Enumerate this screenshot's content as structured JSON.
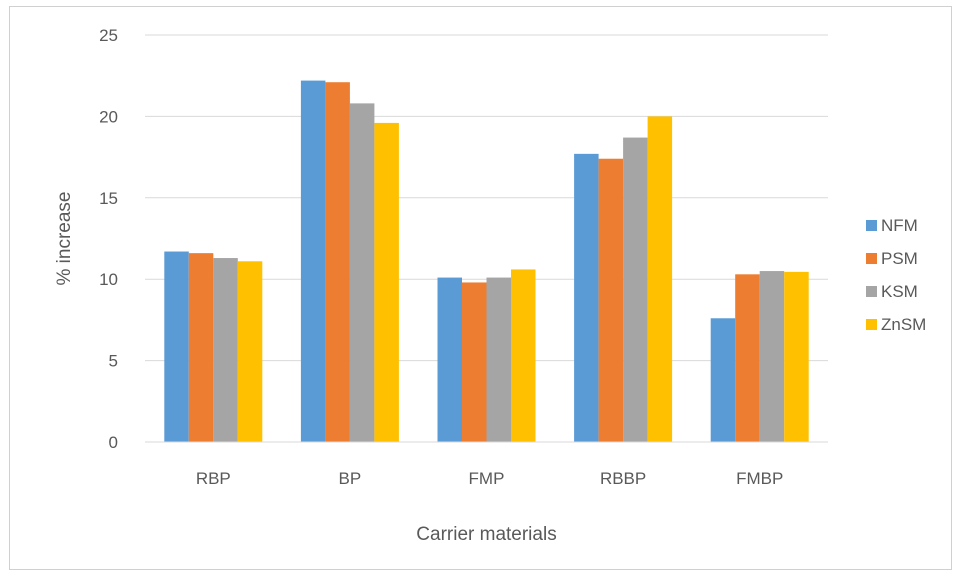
{
  "chart_data": {
    "type": "bar",
    "title": "",
    "xlabel": "Carrier materials",
    "ylabel": "% increase",
    "ylim": [
      0,
      25
    ],
    "yticks": [
      0,
      5,
      10,
      15,
      20,
      25
    ],
    "grid": true,
    "legend_position": "right",
    "categories": [
      "RBP",
      "BP",
      "FMP",
      "RBBP",
      "FMBP"
    ],
    "series": [
      {
        "name": "NFM",
        "color": "#5b9bd5",
        "values": [
          11.7,
          22.2,
          10.1,
          17.7,
          7.6
        ]
      },
      {
        "name": "PSM",
        "color": "#ed7d31",
        "values": [
          11.6,
          22.1,
          9.8,
          17.4,
          10.3
        ]
      },
      {
        "name": "KSM",
        "color": "#a5a5a5",
        "values": [
          11.3,
          20.8,
          10.1,
          18.7,
          10.5
        ]
      },
      {
        "name": "ZnSM",
        "color": "#ffc000",
        "values": [
          11.1,
          19.6,
          10.6,
          20.0,
          10.45
        ]
      }
    ]
  }
}
